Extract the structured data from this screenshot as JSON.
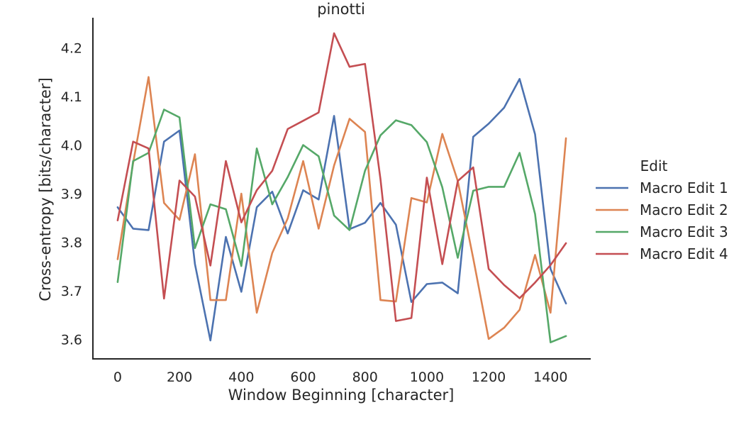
{
  "chart_data": {
    "type": "line",
    "title": "pinotti",
    "xlabel": "Window Beginning [character]",
    "ylabel": "Cross-entropy [bits/character]",
    "xlim": [
      -80,
      1530
    ],
    "ylim": [
      3.56,
      4.262
    ],
    "xticks": [
      0,
      200,
      400,
      600,
      800,
      1000,
      1200,
      1400
    ],
    "yticks": [
      3.6,
      3.7,
      3.8,
      3.9,
      4.0,
      4.1,
      4.2
    ],
    "ytick_labels": [
      "3.6",
      "3.7",
      "3.8",
      "3.9",
      "4.0",
      "4.1",
      "4.2"
    ],
    "grid": false,
    "legend": {
      "title": "Edit",
      "placement": "right"
    },
    "x": [
      0,
      50,
      100,
      150,
      200,
      250,
      300,
      350,
      400,
      450,
      500,
      550,
      600,
      650,
      700,
      750,
      800,
      850,
      900,
      950,
      1000,
      1050,
      1100,
      1150,
      1200,
      1250,
      1300,
      1350,
      1400,
      1450
    ],
    "series": [
      {
        "name": "Macro Edit 1",
        "color": "#4c72b0",
        "values": [
          3.872,
          3.828,
          3.825,
          4.007,
          4.03,
          3.755,
          3.598,
          3.811,
          3.698,
          3.872,
          3.904,
          3.818,
          3.907,
          3.888,
          4.06,
          3.827,
          3.84,
          3.881,
          3.836,
          3.677,
          3.714,
          3.717,
          3.695,
          4.017,
          4.044,
          4.077,
          4.136,
          4.022,
          3.745,
          3.674
        ]
      },
      {
        "name": "Macro Edit 2",
        "color": "#dd8452",
        "values": [
          3.765,
          3.963,
          4.14,
          3.881,
          3.846,
          3.981,
          3.681,
          3.681,
          3.9,
          3.655,
          3.778,
          3.849,
          3.967,
          3.828,
          3.958,
          4.054,
          4.027,
          3.681,
          3.678,
          3.891,
          3.882,
          4.023,
          3.926,
          3.767,
          3.601,
          3.624,
          3.661,
          3.774,
          3.655,
          4.014
        ]
      },
      {
        "name": "Macro Edit 3",
        "color": "#55a868",
        "values": [
          3.718,
          3.967,
          3.984,
          4.073,
          4.057,
          3.788,
          3.878,
          3.868,
          3.751,
          3.993,
          3.878,
          3.934,
          4.0,
          3.977,
          3.855,
          3.825,
          3.947,
          4.02,
          4.051,
          4.041,
          4.006,
          3.913,
          3.768,
          3.906,
          3.914,
          3.914,
          3.984,
          3.858,
          3.594,
          3.607
        ]
      },
      {
        "name": "Macro Edit 4",
        "color": "#c44e52",
        "values": [
          3.845,
          4.007,
          3.993,
          3.684,
          3.927,
          3.894,
          3.752,
          3.967,
          3.841,
          3.907,
          3.947,
          4.033,
          4.05,
          4.067,
          4.23,
          4.161,
          4.167,
          3.93,
          3.638,
          3.644,
          3.933,
          3.755,
          3.926,
          3.954,
          3.745,
          3.712,
          3.685,
          3.717,
          3.753,
          3.798
        ]
      }
    ]
  }
}
